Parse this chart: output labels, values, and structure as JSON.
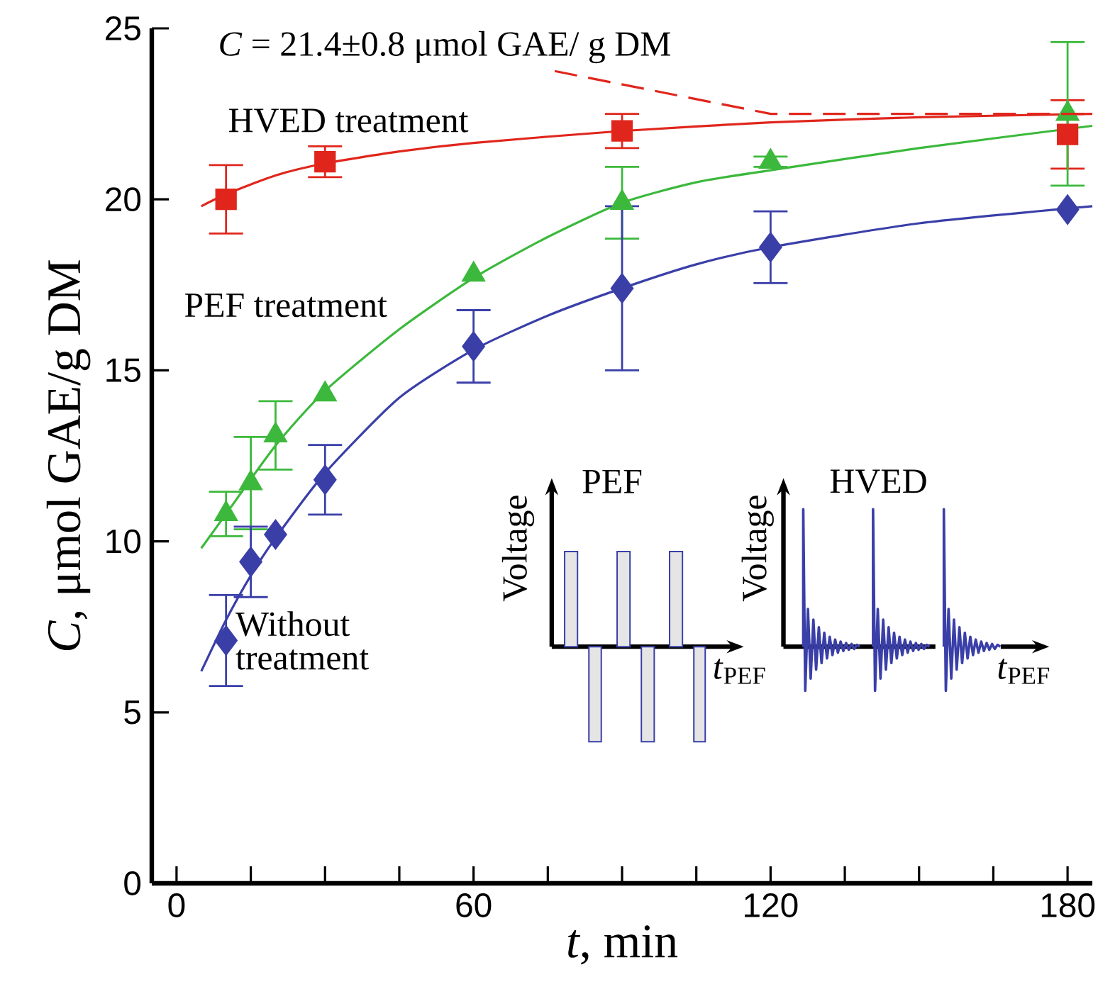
{
  "chart_data": {
    "type": "scatter",
    "xlabel": "*t*, min",
    "ylabel": "*C*, μmol GAE/g DM",
    "xlim": [
      -5,
      185
    ],
    "ylim": [
      0,
      25
    ],
    "xticks": [
      0,
      {
        "value": 15,
        "label": null
      },
      {
        "value": 30,
        "label": null
      },
      {
        "value": 45,
        "label": null
      },
      60,
      {
        "value": 75,
        "label": null
      },
      {
        "value": 90,
        "label": null
      },
      {
        "value": 105,
        "label": null
      },
      120,
      {
        "value": 135,
        "label": null
      },
      {
        "value": 150,
        "label": null
      },
      {
        "value": 165,
        "label": null
      },
      180
    ],
    "yticks": [
      0,
      5,
      10,
      15,
      20,
      25
    ],
    "grid": false,
    "series": [
      {
        "name": "HVED treatment",
        "color": "#e0261c",
        "marker": "square",
        "x": [
          10,
          30,
          90,
          180
        ],
        "values": [
          20.0,
          21.1,
          22.0,
          21.9
        ],
        "errors": [
          1.0,
          0.45,
          0.5,
          1.0
        ]
      },
      {
        "type": "line",
        "color": "#e0261c",
        "x": [
          5,
          10,
          20,
          30,
          45,
          60,
          90,
          120,
          150,
          185
        ],
        "values": [
          19.8,
          20.15,
          20.7,
          21.05,
          21.4,
          21.65,
          22.0,
          22.25,
          22.4,
          22.5
        ]
      },
      {
        "name": "PEF treatment",
        "color": "#3cb93c",
        "marker": "triangle",
        "x": [
          10,
          15,
          20,
          30,
          60,
          90,
          120,
          180
        ],
        "values": [
          10.8,
          11.7,
          13.1,
          14.3,
          17.8,
          19.9,
          21.1,
          22.5
        ],
        "errors": [
          0.65,
          1.35,
          1.0,
          null,
          null,
          1.05,
          0.15,
          2.1
        ]
      },
      {
        "type": "line",
        "color": "#3cb93c",
        "x": [
          5,
          10,
          20,
          30,
          45,
          60,
          75,
          90,
          105,
          120,
          150,
          185
        ],
        "values": [
          9.8,
          10.8,
          12.8,
          14.4,
          16.2,
          17.7,
          18.9,
          19.9,
          20.5,
          20.85,
          21.5,
          22.15
        ]
      },
      {
        "name": "Without treatment",
        "color": "#3a3fa8",
        "marker": "diamond",
        "x": [
          10,
          15,
          20,
          30,
          60,
          90,
          120,
          180
        ],
        "values": [
          7.1,
          9.4,
          10.2,
          11.8,
          15.7,
          17.4,
          18.6,
          19.7
        ],
        "errors": [
          1.33,
          1.03,
          null,
          1.02,
          1.06,
          2.4,
          1.05,
          null
        ]
      },
      {
        "type": "line",
        "color": "#3a3fa8",
        "x": [
          5,
          10,
          15,
          20,
          30,
          45,
          60,
          75,
          90,
          105,
          120,
          150,
          185
        ],
        "values": [
          6.2,
          7.7,
          9.0,
          10.1,
          12.0,
          14.2,
          15.6,
          16.6,
          17.4,
          18.1,
          18.6,
          19.3,
          19.8
        ]
      }
    ],
    "ref_lines": [
      {
        "axis": "y",
        "value": 22.5,
        "color": "#e0261c",
        "line_style": "dashed"
      }
    ],
    "annotations": [
      "*C* = 21.4±0.8 μmol GAE/ g DM",
      "PEF",
      "HVED",
      "Voltage",
      "Voltage",
      "*t*$_{PEF}$",
      "*t*$_{PEF}$"
    ]
  }
}
